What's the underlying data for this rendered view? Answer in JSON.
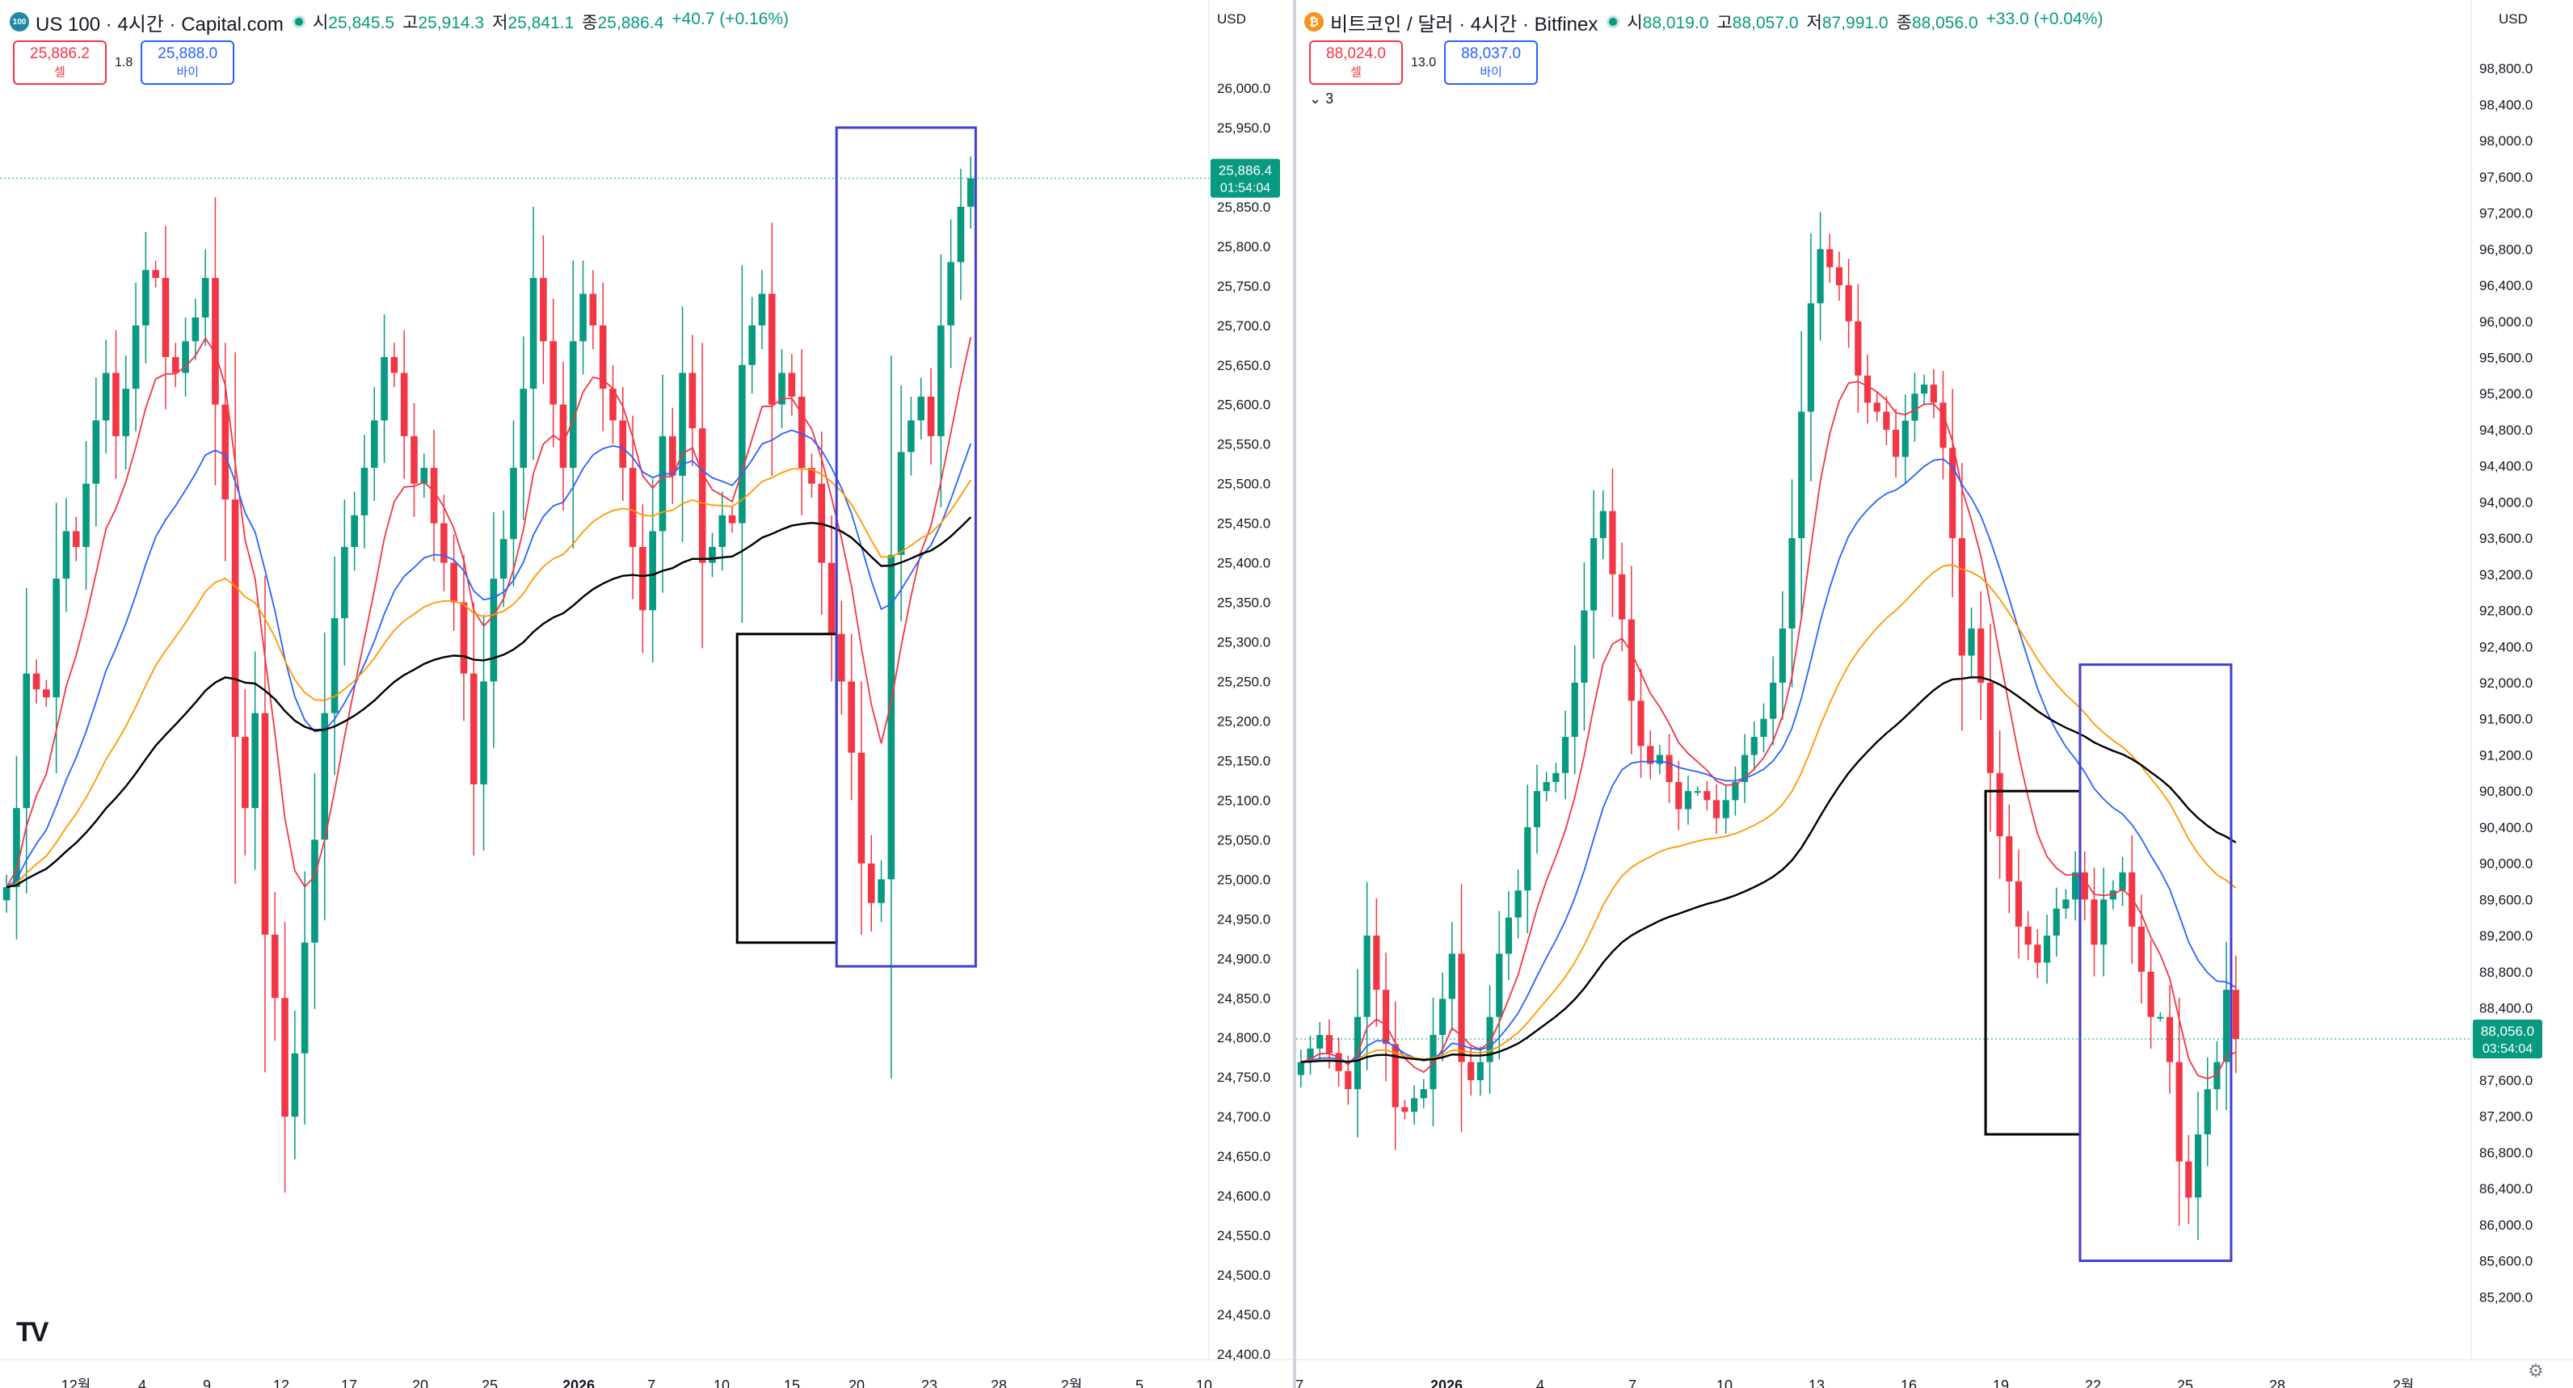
{
  "left": {
    "title": "US 100 · 4시간 · Capital.com",
    "icon": "nasdaq-100-icon",
    "icon_text": "100",
    "ohlc": [
      {
        "k": "시",
        "v": "25,845.5"
      },
      {
        "k": "고",
        "v": "25,914.3"
      },
      {
        "k": "저",
        "v": "25,841.1"
      },
      {
        "k": "종",
        "v": "25,886.4"
      }
    ],
    "change": "+40.7 (+0.16%)",
    "sell": {
      "price": "25,886.2",
      "label": "셀"
    },
    "spread": "1.8",
    "buy": {
      "price": "25,888.0",
      "label": "바이"
    },
    "currency": "USD",
    "last_price": "25,886.4",
    "countdown": "01:54:04",
    "logo": "TV"
  },
  "right": {
    "title": "비트코인 / 달러 · 4시간 · Bitfinex",
    "icon": "bitcoin-icon",
    "icon_text": "₿",
    "ohlc": [
      {
        "k": "시",
        "v": "88,019.0"
      },
      {
        "k": "고",
        "v": "88,057.0"
      },
      {
        "k": "저",
        "v": "87,991.0"
      },
      {
        "k": "종",
        "v": "88,056.0"
      }
    ],
    "change": "+33.0 (+0.04%)",
    "sell": {
      "price": "88,024.0",
      "label": "셀"
    },
    "spread": "13.0",
    "buy": {
      "price": "88,037.0",
      "label": "바이"
    },
    "indicator_toggle": "⌄ 3",
    "currency": "USD",
    "last_price": "88,056.0",
    "countdown": "03:54:04"
  },
  "colors": {
    "up": "#089981",
    "down": "#f23645",
    "ma_fast": "#f23645",
    "ma_mid": "#2962ff",
    "ma_slow": "#ff9800",
    "ma_long": "#000000",
    "box_blue": "#3f3fd1",
    "box_black": "#000000"
  },
  "chart_data": [
    {
      "type": "candlestick",
      "title": "US 100 · 4시간 · Capital.com",
      "ylim": [
        24400,
        26050
      ],
      "y_ticks": [
        24400,
        24450,
        24500,
        24550,
        24600,
        24650,
        24700,
        24750,
        24800,
        24850,
        24900,
        24950,
        25000,
        25050,
        25100,
        25150,
        25200,
        25250,
        25300,
        25350,
        25400,
        25450,
        25500,
        25550,
        25600,
        25650,
        25700,
        25750,
        25800,
        25850,
        25900,
        25950,
        26000
      ],
      "x_tick_labels": [
        "12월",
        "4",
        "9",
        "12",
        "17",
        "20",
        "25",
        "2026",
        "7",
        "10",
        "15",
        "20",
        "23",
        "28",
        "2월",
        "5",
        "10"
      ],
      "closes": [
        24990,
        25090,
        25260,
        25240,
        25230,
        25380,
        25440,
        25420,
        25500,
        25580,
        25640,
        25560,
        25620,
        25700,
        25770,
        25760,
        25660,
        25640,
        25680,
        25710,
        25760,
        25600,
        25480,
        25180,
        25090,
        25210,
        24930,
        24850,
        24700,
        24780,
        24920,
        25050,
        25210,
        25330,
        25420,
        25460,
        25520,
        25580,
        25660,
        25640,
        25560,
        25500,
        25520,
        25450,
        25400,
        25350,
        25260,
        25120,
        25250,
        25380,
        25430,
        25520,
        25620,
        25760,
        25680,
        25600,
        25520,
        25680,
        25740,
        25700,
        25620,
        25580,
        25520,
        25420,
        25340,
        25440,
        25560,
        25510,
        25640,
        25570,
        25400,
        25420,
        25460,
        25450,
        25650,
        25700,
        25740,
        25600,
        25640,
        25610,
        25520,
        25500,
        25400,
        25310,
        25250,
        25160,
        25020,
        24970,
        25000,
        25410,
        25540,
        25580,
        25610,
        25560,
        25700,
        25780,
        25850,
        25886
      ],
      "series": [
        {
          "name": "",
          "color": "#f23645"
        },
        {
          "name": "",
          "color": "#2962ff"
        },
        {
          "name": "",
          "color": "#ff9800"
        },
        {
          "name": "",
          "color": "#000000"
        }
      ],
      "annotations": [
        {
          "kind": "rectangle",
          "color": "#000000",
          "x_range": [
            74,
            84
          ],
          "y_range": [
            24920,
            25310
          ]
        },
        {
          "kind": "rectangle",
          "color": "#3f3fd1",
          "x_range": [
            84,
            98
          ],
          "y_range": [
            24890,
            25950
          ]
        }
      ]
    },
    {
      "type": "candlestick",
      "title": "비트코인 / 달러 · 4시간 · Bitfinex",
      "ylim": [
        84800,
        99200
      ],
      "y_ticks": [
        85200,
        85600,
        86000,
        86400,
        86800,
        87200,
        87600,
        88000,
        88400,
        88800,
        89200,
        89600,
        90000,
        90400,
        90800,
        91200,
        91600,
        92000,
        92400,
        92800,
        93200,
        93600,
        94000,
        94400,
        94800,
        95200,
        95600,
        96000,
        96400,
        96800,
        97200,
        97600,
        98000,
        98400,
        98800
      ],
      "x_tick_labels": [
        "7",
        "2026",
        "4",
        "7",
        "10",
        "13",
        "16",
        "19",
        "22",
        "25",
        "28",
        "2월"
      ],
      "closes": [
        87800,
        87950,
        88100,
        87900,
        87700,
        87500,
        88300,
        89200,
        88600,
        88000,
        87300,
        87250,
        87400,
        87500,
        88100,
        88500,
        89000,
        87800,
        87600,
        87800,
        88300,
        89000,
        89400,
        89700,
        90400,
        90800,
        90900,
        91000,
        91400,
        92000,
        92800,
        93600,
        93900,
        93200,
        92700,
        91800,
        91300,
        91100,
        91200,
        90900,
        90600,
        90800,
        90800,
        90700,
        90500,
        90700,
        90900,
        91200,
        91400,
        91600,
        92000,
        92600,
        93600,
        95000,
        96200,
        96800,
        96600,
        96400,
        96000,
        95400,
        95100,
        95000,
        94800,
        94500,
        94900,
        95200,
        95300,
        95100,
        94600,
        93600,
        92300,
        92600,
        92000,
        91000,
        90300,
        89800,
        89300,
        89100,
        88900,
        89200,
        89500,
        89600,
        89900,
        89600,
        89100,
        89600,
        89700,
        89900,
        89300,
        88800,
        88300,
        88300,
        87800,
        86700,
        86300,
        87000,
        87500,
        87800,
        88600,
        88056
      ],
      "series": [
        {
          "name": "",
          "color": "#f23645"
        },
        {
          "name": "",
          "color": "#2962ff"
        },
        {
          "name": "",
          "color": "#ff9800"
        },
        {
          "name": "",
          "color": "#000000"
        }
      ],
      "annotations": [
        {
          "kind": "rectangle",
          "color": "#000000",
          "x_range": [
            73,
            83
          ],
          "y_range": [
            87000,
            90800
          ]
        },
        {
          "kind": "rectangle",
          "color": "#3f3fd1",
          "x_range": [
            83,
            99
          ],
          "y_range": [
            85600,
            92200
          ]
        }
      ]
    }
  ]
}
